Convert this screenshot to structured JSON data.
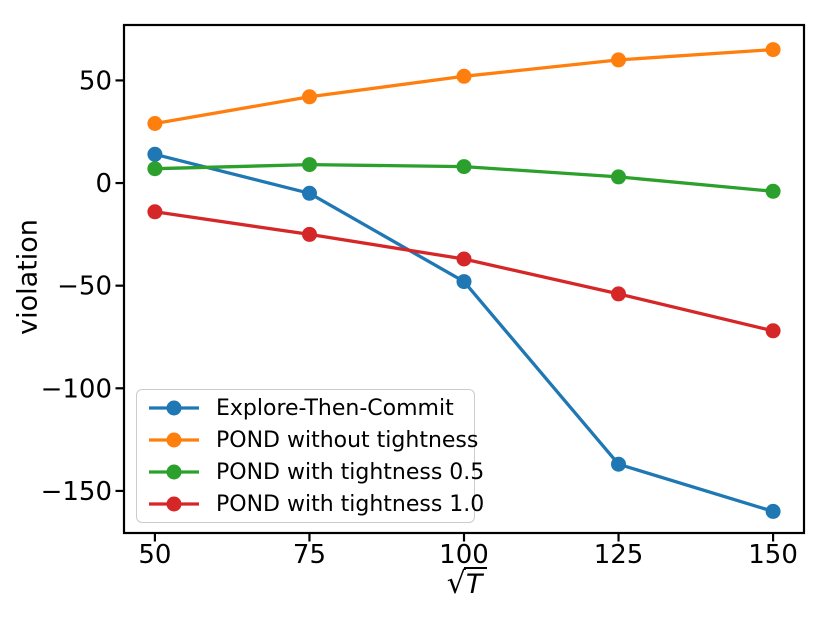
{
  "chart_data": {
    "type": "line",
    "title": "",
    "xlabel": "√T",
    "xlabel_parts": {
      "radical": "√",
      "radicand": "T"
    },
    "ylabel": "violation",
    "x": [
      50,
      75,
      100,
      125,
      150
    ],
    "xlim": [
      45,
      155
    ],
    "ylim": [
      -170.5,
      77
    ],
    "x_ticks": [
      {
        "value": 50,
        "label": "50"
      },
      {
        "value": 75,
        "label": "75"
      },
      {
        "value": 100,
        "label": "100"
      },
      {
        "value": 125,
        "label": "125"
      },
      {
        "value": 150,
        "label": "150"
      }
    ],
    "y_ticks": [
      {
        "value": 50,
        "label": "50"
      },
      {
        "value": 0,
        "label": "0"
      },
      {
        "value": -50,
        "label": "−50"
      },
      {
        "value": -100,
        "label": "−100"
      },
      {
        "value": -150,
        "label": "−150"
      }
    ],
    "grid": false,
    "legend_position": "lower-left",
    "axis_color": "#000000",
    "series": [
      {
        "name": "Explore-Then-Commit",
        "color": "#1f77b4",
        "values": [
          14,
          -5,
          -48,
          -137,
          -160
        ]
      },
      {
        "name": "POND without tightness",
        "color": "#ff7f0e",
        "values": [
          29,
          42,
          52,
          60,
          65
        ]
      },
      {
        "name": "POND with tightness 0.5",
        "color": "#2ca02c",
        "values": [
          7,
          9,
          8,
          3,
          -4
        ]
      },
      {
        "name": "POND with tightness 1.0",
        "color": "#d62728",
        "values": [
          -14,
          -25,
          -37,
          -54,
          -72
        ]
      }
    ]
  }
}
